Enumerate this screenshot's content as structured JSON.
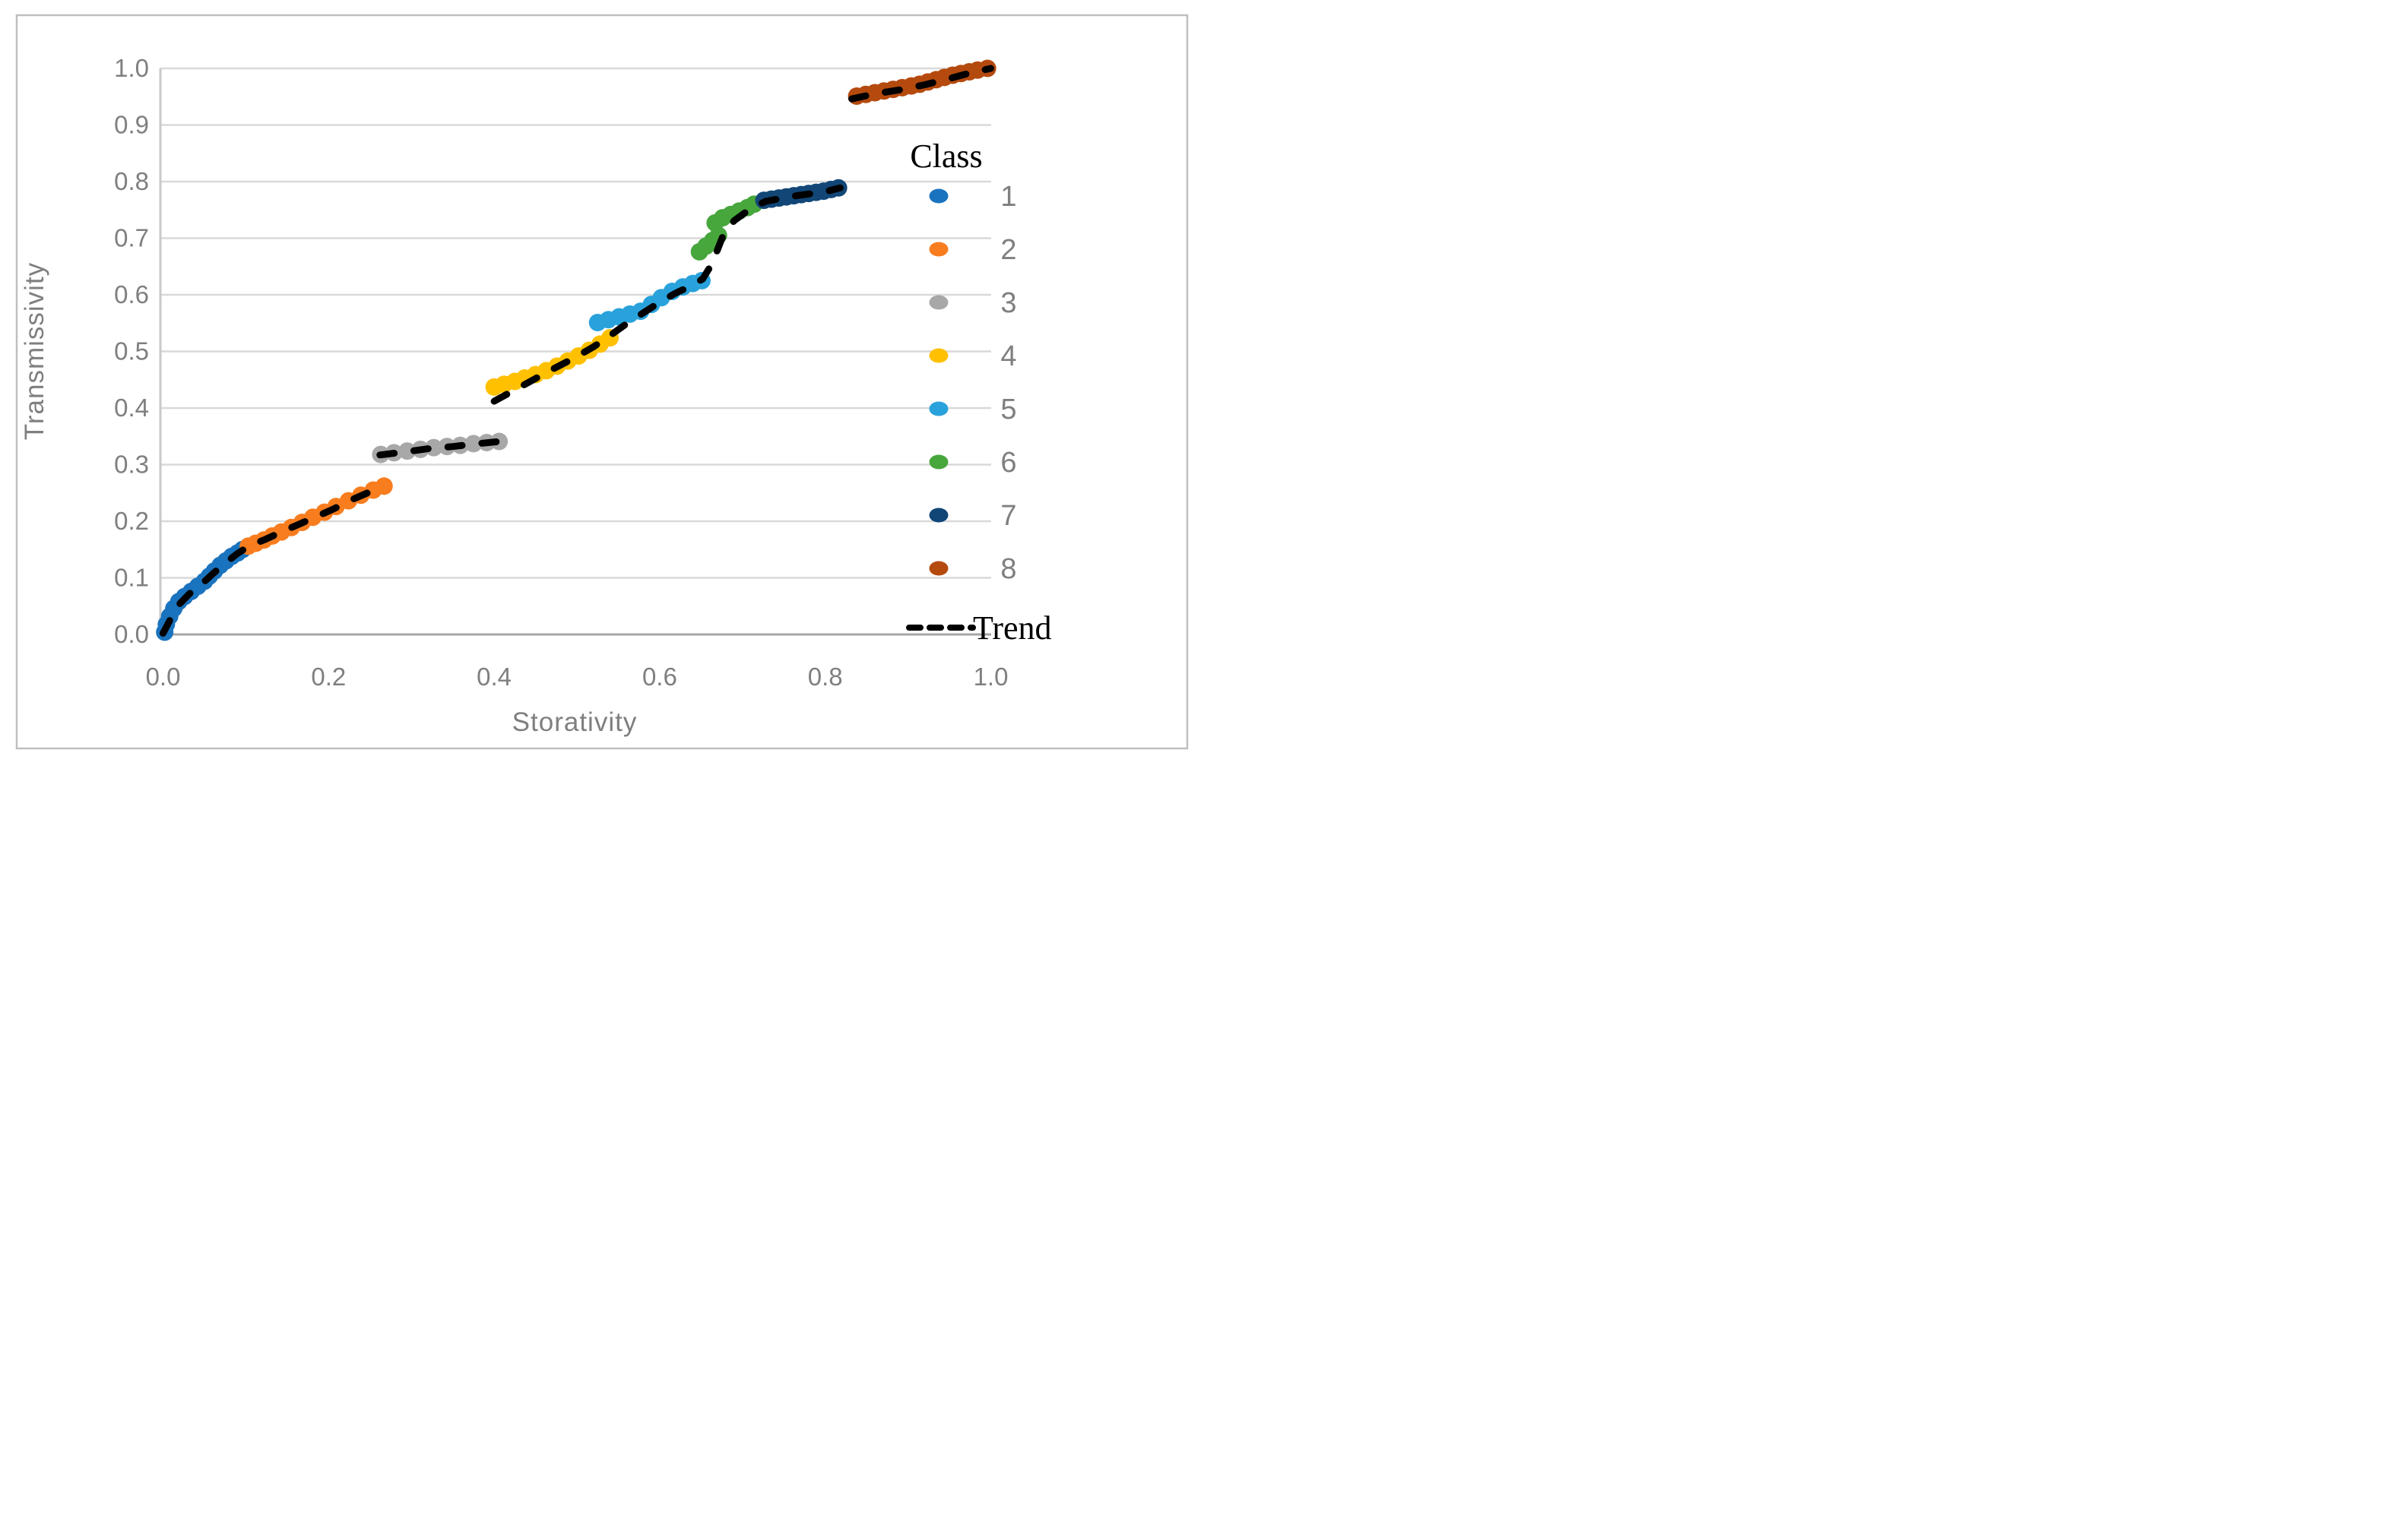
{
  "figure": {
    "frame_color": "#BFBFBF",
    "background": "#FFFFFF",
    "gridline_color": "#D9D9D9",
    "x_axis_line_color": "#A6A6A6",
    "y_axis_line_color": "#C9C9C9",
    "tick_text_color": "#7F7F7F",
    "trend_color": "#000000"
  },
  "legend": {
    "title": "Class",
    "trend_label": "Trend",
    "items": [
      {
        "label": "1",
        "color": "#1A73BE"
      },
      {
        "label": "2",
        "color": "#F87D1F"
      },
      {
        "label": "3",
        "color": "#A8A8A8"
      },
      {
        "label": "4",
        "color": "#FFC000"
      },
      {
        "label": "5",
        "color": "#29A2DC"
      },
      {
        "label": "6",
        "color": "#47A63C"
      },
      {
        "label": "7",
        "color": "#114677"
      },
      {
        "label": "8",
        "color": "#B54A0E"
      }
    ]
  },
  "chart_data": {
    "type": "scatter",
    "title": "",
    "xlabel": "Storativity",
    "ylabel": "Transmissivity",
    "xlim": [
      0.0,
      1.0
    ],
    "ylim": [
      0.0,
      1.0
    ],
    "grid": "horizontal",
    "legend_position": "right-inside",
    "x_ticks": [
      0.0,
      0.2,
      0.4,
      0.6,
      0.8,
      1.0
    ],
    "y_ticks": [
      0.0,
      0.1,
      0.2,
      0.3,
      0.4,
      0.5,
      0.6,
      0.7,
      0.8,
      0.9,
      1.0
    ],
    "x_tick_labels": [
      "0.0",
      "0.2",
      "0.4",
      "0.6",
      "0.8",
      "1.0"
    ],
    "y_tick_labels": [
      "0.0",
      "0.1",
      "0.2",
      "0.3",
      "0.4",
      "0.5",
      "0.6",
      "0.7",
      "0.8",
      "0.9",
      "1.0"
    ],
    "series": [
      {
        "name": "1",
        "color": "#1A73BE",
        "points": [
          [
            0.002,
            0.004
          ],
          [
            0.004,
            0.018
          ],
          [
            0.008,
            0.032
          ],
          [
            0.013,
            0.046
          ],
          [
            0.019,
            0.058
          ],
          [
            0.026,
            0.067
          ],
          [
            0.034,
            0.076
          ],
          [
            0.042,
            0.085
          ],
          [
            0.05,
            0.094
          ],
          [
            0.056,
            0.103
          ],
          [
            0.062,
            0.112
          ],
          [
            0.069,
            0.122
          ],
          [
            0.076,
            0.13
          ],
          [
            0.083,
            0.138
          ],
          [
            0.09,
            0.144
          ],
          [
            0.096,
            0.15
          ]
        ]
      },
      {
        "name": "2",
        "color": "#F87D1F",
        "points": [
          [
            0.103,
            0.156
          ],
          [
            0.112,
            0.161
          ],
          [
            0.122,
            0.167
          ],
          [
            0.132,
            0.174
          ],
          [
            0.143,
            0.181
          ],
          [
            0.155,
            0.189
          ],
          [
            0.168,
            0.198
          ],
          [
            0.181,
            0.207
          ],
          [
            0.195,
            0.216
          ],
          [
            0.209,
            0.226
          ],
          [
            0.224,
            0.236
          ],
          [
            0.239,
            0.246
          ],
          [
            0.254,
            0.255
          ],
          [
            0.267,
            0.262
          ]
        ]
      },
      {
        "name": "3",
        "color": "#A8A8A8",
        "points": [
          [
            0.263,
            0.318
          ],
          [
            0.279,
            0.321
          ],
          [
            0.295,
            0.324
          ],
          [
            0.311,
            0.327
          ],
          [
            0.327,
            0.33
          ],
          [
            0.343,
            0.332
          ],
          [
            0.359,
            0.334
          ],
          [
            0.375,
            0.337
          ],
          [
            0.391,
            0.339
          ],
          [
            0.406,
            0.341
          ]
        ]
      },
      {
        "name": "4",
        "color": "#FFC000",
        "points": [
          [
            0.4,
            0.437
          ],
          [
            0.412,
            0.442
          ],
          [
            0.425,
            0.447
          ],
          [
            0.437,
            0.453
          ],
          [
            0.45,
            0.459
          ],
          [
            0.463,
            0.466
          ],
          [
            0.476,
            0.474
          ],
          [
            0.489,
            0.483
          ],
          [
            0.502,
            0.492
          ],
          [
            0.515,
            0.502
          ],
          [
            0.528,
            0.513
          ],
          [
            0.54,
            0.524
          ]
        ]
      },
      {
        "name": "5",
        "color": "#29A2DC",
        "points": [
          [
            0.525,
            0.551
          ],
          [
            0.538,
            0.556
          ],
          [
            0.551,
            0.561
          ],
          [
            0.564,
            0.566
          ],
          [
            0.577,
            0.571
          ],
          [
            0.59,
            0.583
          ],
          [
            0.602,
            0.595
          ],
          [
            0.615,
            0.606
          ],
          [
            0.628,
            0.614
          ],
          [
            0.64,
            0.62
          ],
          [
            0.651,
            0.625
          ]
        ]
      },
      {
        "name": "6",
        "color": "#47A63C",
        "points": [
          [
            0.648,
            0.676
          ],
          [
            0.656,
            0.686
          ],
          [
            0.664,
            0.696
          ],
          [
            0.671,
            0.705
          ],
          [
            0.667,
            0.727
          ],
          [
            0.676,
            0.736
          ],
          [
            0.686,
            0.742
          ],
          [
            0.696,
            0.748
          ],
          [
            0.706,
            0.754
          ],
          [
            0.714,
            0.76
          ]
        ]
      },
      {
        "name": "7",
        "color": "#114677",
        "points": [
          [
            0.726,
            0.767
          ],
          [
            0.735,
            0.769
          ],
          [
            0.744,
            0.771
          ],
          [
            0.753,
            0.773
          ],
          [
            0.762,
            0.775
          ],
          [
            0.771,
            0.777
          ],
          [
            0.78,
            0.779
          ],
          [
            0.789,
            0.781
          ],
          [
            0.798,
            0.783
          ],
          [
            0.807,
            0.786
          ],
          [
            0.816,
            0.789
          ]
        ]
      },
      {
        "name": "8",
        "color": "#B54A0E",
        "points": [
          [
            0.838,
            0.951
          ],
          [
            0.849,
            0.954
          ],
          [
            0.86,
            0.957
          ],
          [
            0.871,
            0.96
          ],
          [
            0.882,
            0.963
          ],
          [
            0.893,
            0.966
          ],
          [
            0.904,
            0.969
          ],
          [
            0.914,
            0.972
          ],
          [
            0.924,
            0.976
          ],
          [
            0.934,
            0.98
          ],
          [
            0.944,
            0.984
          ],
          [
            0.954,
            0.988
          ],
          [
            0.964,
            0.991
          ],
          [
            0.974,
            0.994
          ],
          [
            0.984,
            0.997
          ],
          [
            0.996,
            1.0
          ]
        ]
      }
    ],
    "trend": {
      "name": "Trend",
      "color": "#000000",
      "style": "dashed",
      "segments": [
        [
          [
            0.0,
            0.002
          ],
          [
            0.01,
            0.03
          ],
          [
            0.02,
            0.054
          ],
          [
            0.032,
            0.072
          ],
          [
            0.046,
            0.088
          ],
          [
            0.06,
            0.107
          ],
          [
            0.075,
            0.126
          ],
          [
            0.09,
            0.143
          ],
          [
            0.105,
            0.157
          ],
          [
            0.122,
            0.167
          ],
          [
            0.14,
            0.179
          ],
          [
            0.16,
            0.192
          ],
          [
            0.182,
            0.206
          ],
          [
            0.205,
            0.221
          ],
          [
            0.228,
            0.238
          ],
          [
            0.25,
            0.252
          ],
          [
            0.268,
            0.262
          ]
        ],
        [
          [
            0.262,
            0.317
          ],
          [
            0.29,
            0.322
          ],
          [
            0.32,
            0.328
          ],
          [
            0.35,
            0.332
          ],
          [
            0.38,
            0.337
          ],
          [
            0.407,
            0.341
          ]
        ],
        [
          [
            0.4,
            0.412
          ],
          [
            0.42,
            0.428
          ],
          [
            0.445,
            0.448
          ],
          [
            0.47,
            0.468
          ],
          [
            0.495,
            0.487
          ],
          [
            0.52,
            0.508
          ],
          [
            0.54,
            0.528
          ],
          [
            0.56,
            0.549
          ],
          [
            0.578,
            0.566
          ],
          [
            0.598,
            0.585
          ],
          [
            0.618,
            0.602
          ],
          [
            0.638,
            0.616
          ],
          [
            0.652,
            0.628
          ],
          [
            0.662,
            0.652
          ],
          [
            0.67,
            0.68
          ],
          [
            0.678,
            0.71
          ],
          [
            0.69,
            0.731
          ],
          [
            0.703,
            0.745
          ],
          [
            0.716,
            0.757
          ],
          [
            0.728,
            0.765
          ],
          [
            0.745,
            0.77
          ],
          [
            0.765,
            0.775
          ],
          [
            0.785,
            0.779
          ],
          [
            0.805,
            0.784
          ],
          [
            0.818,
            0.789
          ]
        ],
        [
          [
            0.832,
            0.946
          ],
          [
            0.86,
            0.955
          ],
          [
            0.89,
            0.962
          ],
          [
            0.92,
            0.971
          ],
          [
            0.95,
            0.982
          ],
          [
            0.975,
            0.992
          ],
          [
            1.0,
            1.0
          ]
        ]
      ]
    }
  }
}
